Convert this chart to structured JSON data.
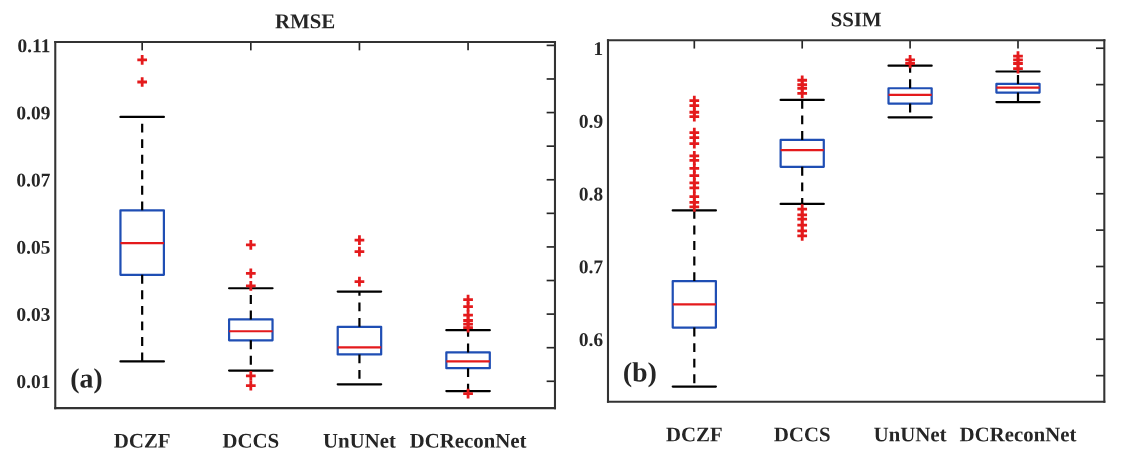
{
  "chart_data": [
    {
      "type": "box",
      "title": "RMSE",
      "categories": [
        "DCZF",
        "DCCS",
        "UnUNet",
        "DCReconNet"
      ],
      "series": [
        {
          "color": "#1f4eb4",
          "boxes": [
            {
              "low": 0.0159,
              "q1": 0.0417,
              "median": 0.0511,
              "q3": 0.0609,
              "high": 0.0887,
              "outliers": [
                0.1057,
                0.0991
              ]
            },
            {
              "low": 0.0132,
              "q1": 0.0222,
              "median": 0.0249,
              "q3": 0.0284,
              "high": 0.0377,
              "outliers": [
                0.0506,
                0.0421,
                0.0384,
                0.0116,
                0.0087
              ]
            },
            {
              "low": 0.0091,
              "q1": 0.018,
              "median": 0.0201,
              "q3": 0.0262,
              "high": 0.0367,
              "outliers": [
                0.052,
                0.0486,
                0.0397
              ]
            },
            {
              "low": 0.0071,
              "q1": 0.0139,
              "median": 0.0159,
              "q3": 0.0186,
              "high": 0.0252,
              "outliers": [
                0.0343,
                0.0322,
                0.0297,
                0.0281,
                0.027,
                0.026,
                0.0063
              ]
            }
          ]
        }
      ],
      "ylim": [
        0.002,
        0.111
      ],
      "yticks": [
        0.01,
        {
          "value": 0.02,
          "label": null
        },
        0.03,
        {
          "value": 0.04,
          "label": null
        },
        0.05,
        {
          "value": 0.06,
          "label": null
        },
        0.07,
        {
          "value": 0.08,
          "label": null
        },
        0.09,
        {
          "value": 0.1,
          "label": null
        },
        0.11
      ],
      "annotations": [
        "(a)"
      ]
    },
    {
      "type": "box",
      "title": "SSIM",
      "categories": [
        "DCZF",
        "DCCS",
        "UnUNet",
        "DCReconNet"
      ],
      "series": [
        {
          "color": "#1f4eb4",
          "boxes": [
            {
              "low": 0.535,
              "q1": 0.616,
              "median": 0.648,
              "q3": 0.68,
              "high": 0.777,
              "outliers": [
                0.928,
                0.921,
                0.912,
                0.906,
                0.884,
                0.877,
                0.869,
                0.852,
                0.846,
                0.835,
                0.825,
                0.815,
                0.808,
                0.796,
                0.788,
                0.782
              ]
            },
            {
              "low": 0.786,
              "q1": 0.837,
              "median": 0.86,
              "q3": 0.874,
              "high": 0.929,
              "outliers": [
                0.956,
                0.95,
                0.945,
                0.938,
                0.779,
                0.771,
                0.765,
                0.757,
                0.749,
                0.742
              ]
            },
            {
              "low": 0.905,
              "q1": 0.924,
              "median": 0.936,
              "q3": 0.945,
              "high": 0.976,
              "outliers": [
                0.984,
                0.979
              ]
            },
            {
              "low": 0.926,
              "q1": 0.939,
              "median": 0.946,
              "q3": 0.951,
              "high": 0.968,
              "outliers": [
                0.989,
                0.984,
                0.979,
                0.972
              ]
            }
          ]
        }
      ],
      "ylim": [
        0.514,
        1.011
      ],
      "yticks": [
        {
          "value": 0.55,
          "label": null
        },
        0.6,
        {
          "value": 0.65,
          "label": null
        },
        0.7,
        {
          "value": 0.75,
          "label": null
        },
        0.8,
        {
          "value": 0.85,
          "label": null
        },
        0.9,
        {
          "value": 0.95,
          "label": null
        },
        1
      ],
      "annotations": [
        "(b)"
      ]
    }
  ]
}
